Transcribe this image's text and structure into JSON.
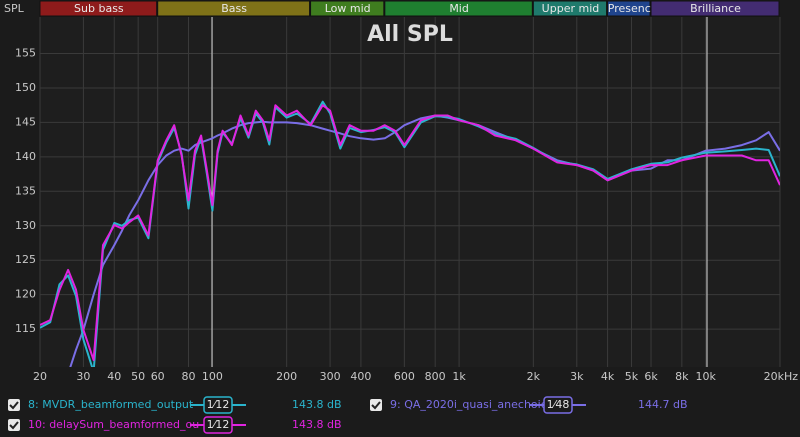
{
  "chart_data": {
    "type": "line",
    "title": "All SPL",
    "y_label": "SPL",
    "x_scale": "log",
    "grid": true,
    "xlim": [
      20,
      20000
    ],
    "ylim": [
      109.5,
      160.3
    ],
    "xticks": [
      20,
      30,
      40,
      50,
      60,
      80,
      100,
      200,
      300,
      400,
      600,
      800,
      {
        "value": 1000,
        "label": "1k"
      },
      {
        "value": 2000,
        "label": "2k"
      },
      {
        "value": 3000,
        "label": "3k"
      },
      {
        "value": 4000,
        "label": "4k"
      },
      {
        "value": 5000,
        "label": "5k"
      },
      {
        "value": 6000,
        "label": "6k"
      },
      {
        "value": 8000,
        "label": "8k"
      },
      {
        "value": 10000,
        "label": "10k"
      },
      {
        "value": 20000,
        "label": "20kHz"
      }
    ],
    "yticks": [
      115,
      120,
      125,
      130,
      135,
      140,
      145,
      150,
      155
    ],
    "bands": [
      {
        "label": "Sub bass",
        "from": 20,
        "to": 60,
        "color": "#8e1b1b"
      },
      {
        "label": "Bass",
        "from": 60,
        "to": 250,
        "color": "#7f7218"
      },
      {
        "label": "Low mid",
        "from": 250,
        "to": 500,
        "color": "#3f7d1f"
      },
      {
        "label": "Mid",
        "from": 500,
        "to": 2000,
        "color": "#1f7f30"
      },
      {
        "label": "Upper mid",
        "from": 2000,
        "to": 4000,
        "color": "#1f7a6c"
      },
      {
        "label": "Presenc",
        "from": 4000,
        "to": 6000,
        "color": "#1f448d"
      },
      {
        "label": "Brilliance",
        "from": 6000,
        "to": 20000,
        "color": "#432c72"
      }
    ],
    "x": [
      20,
      22,
      24,
      26,
      28,
      30,
      33,
      36,
      40,
      43,
      46,
      50,
      55,
      60,
      65,
      70,
      75,
      80,
      85,
      90,
      95,
      100,
      105,
      110,
      120,
      130,
      140,
      150,
      160,
      170,
      180,
      200,
      220,
      250,
      280,
      300,
      330,
      360,
      400,
      450,
      500,
      550,
      600,
      700,
      800,
      900,
      1000,
      1200,
      1400,
      1700,
      2000,
      2500,
      3000,
      3500,
      4000,
      5000,
      6000,
      7000,
      8000,
      10000,
      12000,
      14000,
      16000,
      18000,
      20000
    ],
    "series": [
      {
        "name": "8: MVDR_beamformed_output",
        "color": "#2ab4cc",
        "smoothing": "1⁄12",
        "level": "143.8 dB",
        "values": [
          115.2,
          116,
          121.5,
          122.8,
          119.8,
          113.5,
          108.8,
          126.5,
          130.4,
          130,
          130.8,
          131.2,
          128.2,
          139.2,
          142.1,
          144.2,
          140.5,
          132.5,
          140.3,
          142.8,
          137.5,
          132.2,
          140.5,
          143.5,
          141.9,
          145.6,
          142.8,
          146.3,
          145,
          141.8,
          147.2,
          145.7,
          146.3,
          144.8,
          148,
          146.3,
          141.2,
          144.2,
          143.6,
          143.9,
          144.3,
          143.6,
          141.4,
          145,
          145.9,
          145.8,
          145.5,
          144.4,
          143.3,
          142.6,
          141.3,
          139.3,
          138.9,
          138.2,
          136.8,
          138.2,
          139,
          139.2,
          139.9,
          140.6,
          140.8,
          141,
          141.2,
          141,
          137.2
        ]
      },
      {
        "name": "10: delaySum_beamformed_ou",
        "color": "#e024e0",
        "smoothing": "1⁄12",
        "level": "143.8 dB",
        "values": [
          115.6,
          116.3,
          120.7,
          123.6,
          120.7,
          114.9,
          110.5,
          127.2,
          130.1,
          129.6,
          130.5,
          131.5,
          128.6,
          139.5,
          142.4,
          144.6,
          140.2,
          133.7,
          140.9,
          143.1,
          138,
          133,
          140.9,
          143.8,
          141.7,
          146,
          143.1,
          146.7,
          145.3,
          142.4,
          147.5,
          146,
          146.7,
          144.6,
          147.5,
          146.7,
          141.7,
          144.6,
          143.8,
          143.8,
          144.6,
          143.8,
          141.7,
          145.3,
          146,
          146,
          145.3,
          144.6,
          143.1,
          142.4,
          141.2,
          139.2,
          138.8,
          138,
          136.6,
          138,
          138.8,
          138.8,
          139.5,
          140.2,
          140.2,
          140.2,
          139.5,
          139.5,
          135.9
        ]
      },
      {
        "name": "9: QA_2020i_quasi_anechoic",
        "color": "#7a6ee6",
        "smoothing": "1⁄48",
        "level": "144.7 dB",
        "values": [
          null,
          null,
          null,
          108.5,
          112,
          114.9,
          120,
          124.3,
          127.2,
          129.3,
          131.5,
          133.7,
          136.6,
          138.8,
          140.2,
          140.9,
          141.2,
          140.9,
          141.7,
          142.1,
          142.4,
          142.7,
          143.1,
          143.4,
          144.1,
          144.6,
          144.9,
          145,
          145.1,
          145,
          145,
          145,
          144.9,
          144.6,
          144.1,
          143.8,
          143.4,
          143,
          142.7,
          142.5,
          142.7,
          143.6,
          144.6,
          145.6,
          146,
          145.7,
          145.3,
          144.6,
          143.6,
          142.4,
          141.2,
          139.5,
          138.8,
          138,
          136.6,
          138,
          138.3,
          139.5,
          139.5,
          140.9,
          141.2,
          141.7,
          142.4,
          143.6,
          140.9
        ]
      }
    ]
  }
}
